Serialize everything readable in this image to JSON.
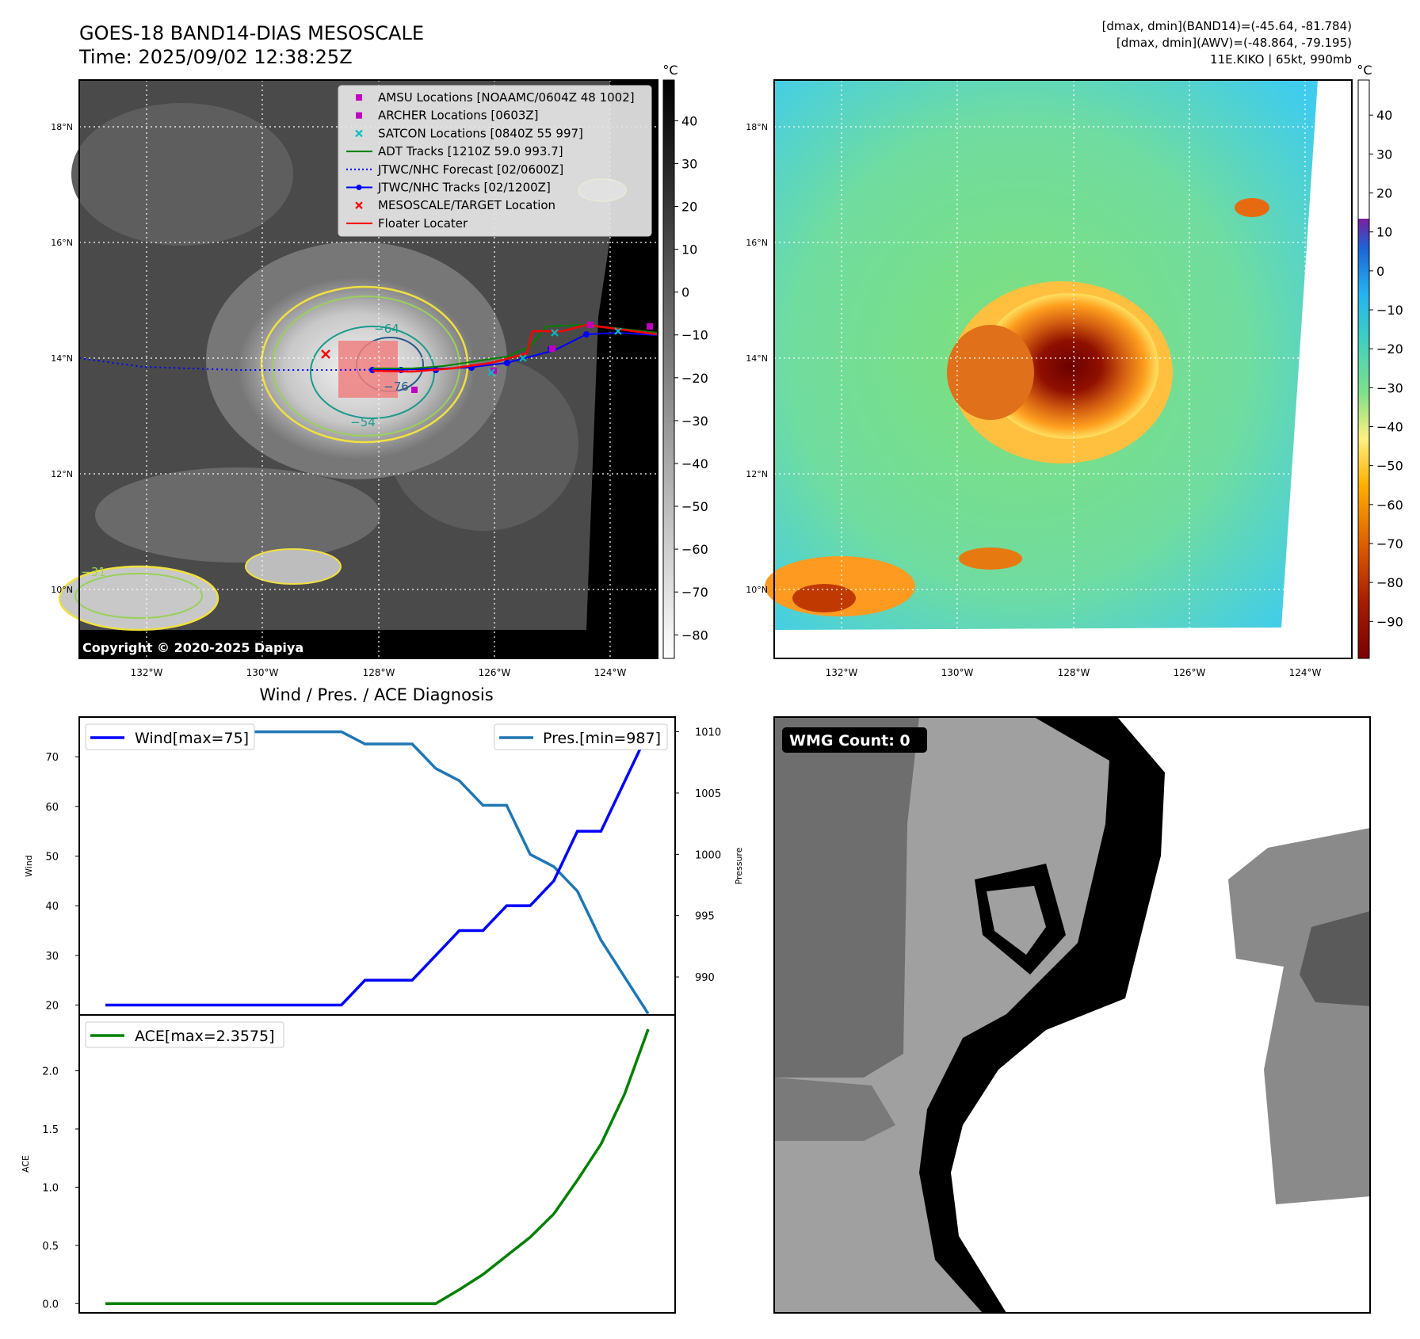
{
  "header": {
    "title": "GOES-18 BAND14-DIAS MESOSCALE",
    "time": "Time: 2025/09/02 12:38:25Z",
    "stats1": "[dmax, dmin](BAND14)=(-45.64, -81.784)",
    "stats2": "[dmax, dmin](AWV)=(-48.864, -79.195)",
    "storm": "11E.KIKO | 65kt, 990mb"
  },
  "copyright": "Copyright © 2020-2025 Dapiya",
  "maps": {
    "lon_ticks": [
      "132°W",
      "130°W",
      "128°W",
      "126°W",
      "124°W"
    ],
    "lat_ticks": [
      "18°N",
      "16°N",
      "14°N",
      "12°N",
      "10°N"
    ],
    "colorbar_unit": "°C",
    "gray_cbar_ticks": [
      "40",
      "30",
      "20",
      "10",
      "0",
      "−10",
      "−20",
      "−30",
      "−40",
      "−50",
      "−60",
      "−70",
      "−80"
    ],
    "color_cbar_ticks": [
      "40",
      "30",
      "20",
      "10",
      "0",
      "−10",
      "−20",
      "−30",
      "−40",
      "−50",
      "−60",
      "−70",
      "−80",
      "−90"
    ],
    "contour_labels": [
      "−64",
      "−54",
      "−76",
      "−31"
    ]
  },
  "legend": [
    {
      "label": "AMSU Locations [NOAAMC/0604Z 48 1002]",
      "color": "#bf00bf",
      "marker": "square"
    },
    {
      "label": "ARCHER Locations [0603Z]",
      "color": "#bf00bf",
      "marker": "square"
    },
    {
      "label": "SATCON Locations [0840Z 55 997]",
      "color": "#00bfbf",
      "marker": "x"
    },
    {
      "label": "ADT Tracks [1210Z 59.0 993.7]",
      "color": "#008000",
      "marker": "line"
    },
    {
      "label": "JTWC/NHC Forecast [02/0600Z]",
      "color": "#0000ff",
      "marker": "dotted"
    },
    {
      "label": "JTWC/NHC Tracks [02/1200Z]",
      "color": "#0000ff",
      "marker": "line-dot"
    },
    {
      "label": "MESOSCALE/TARGET Location",
      "color": "#ff0000",
      "marker": "x"
    },
    {
      "label": "Floater Locater",
      "color": "#ff0000",
      "marker": "line"
    }
  ],
  "wmg": {
    "label": "WMG Count: 0"
  },
  "chart_data": [
    {
      "type": "line",
      "title": "Wind / Pres. / ACE Diagnosis",
      "ylabel": "Wind",
      "y2label": "Pressure",
      "ylim": [
        18,
        78
      ],
      "y2lim": [
        986.9,
        1011.2
      ],
      "yticks": [
        20,
        30,
        40,
        50,
        60,
        70
      ],
      "y2ticks": [
        990,
        995,
        1000,
        1005,
        1010
      ],
      "x": [
        0,
        1,
        2,
        3,
        4,
        5,
        6,
        7,
        8,
        9,
        10,
        11,
        12,
        13,
        14,
        15,
        16,
        17,
        18,
        19,
        20,
        21,
        22,
        23
      ],
      "series": [
        {
          "name": "Wind[max=75]",
          "axis": "left",
          "color": "#0000ff",
          "values": [
            20,
            20,
            20,
            20,
            20,
            20,
            20,
            20,
            20,
            20,
            20,
            25,
            25,
            25,
            30,
            35,
            35,
            40,
            40,
            45,
            55,
            55,
            65,
            75
          ]
        },
        {
          "name": "Pres.[min=987]",
          "axis": "right",
          "color": "#1f77b4",
          "values": [
            1010,
            1010,
            1010,
            1010,
            1010,
            1010,
            1010,
            1010,
            1010,
            1010,
            1010,
            1009,
            1009,
            1009,
            1007,
            1006,
            1004,
            1004,
            1000,
            999,
            997,
            993,
            990,
            987
          ]
        }
      ]
    },
    {
      "type": "line",
      "ylabel": "ACE",
      "ylim": [
        -0.08,
        2.48
      ],
      "yticks": [
        "0.0",
        "0.5",
        "1.0",
        "1.5",
        "2.0"
      ],
      "x": [
        0,
        1,
        2,
        3,
        4,
        5,
        6,
        7,
        8,
        9,
        10,
        11,
        12,
        13,
        14,
        15,
        16,
        17,
        18,
        19,
        20,
        21,
        22,
        23
      ],
      "series": [
        {
          "name": "ACE[max=2.3575]",
          "color": "#008000",
          "values": [
            0,
            0,
            0,
            0,
            0,
            0,
            0,
            0,
            0,
            0,
            0,
            0,
            0,
            0,
            0,
            0.12,
            0.25,
            0.41,
            0.57,
            0.77,
            1.06,
            1.37,
            1.8,
            2.3575
          ]
        }
      ]
    }
  ]
}
